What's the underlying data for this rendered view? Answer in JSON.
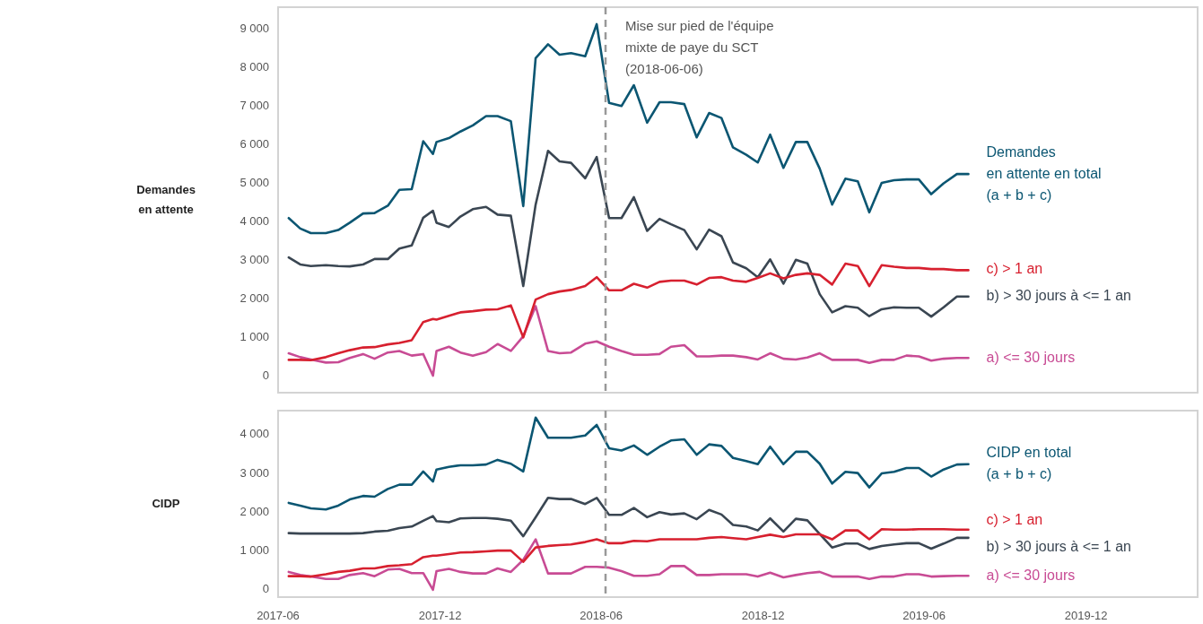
{
  "chart_data": [
    {
      "type": "line",
      "ylabel": "Demandes\nen attente",
      "tick_labels": "y",
      "x": [
        "2017-06-13",
        "2017-06-26",
        "2017-07-08",
        "2017-07-25",
        "2017-08-08",
        "2017-08-21",
        "2017-09-05",
        "2017-09-18",
        "2017-10-03",
        "2017-10-16",
        "2017-10-30",
        "2017-11-12",
        "2017-11-23",
        "2017-11-27",
        "2017-12-11",
        "2017-12-24",
        "2018-01-07",
        "2018-01-22",
        "2018-02-04",
        "2018-02-19",
        "2018-03-05",
        "2018-03-19",
        "2018-04-02",
        "2018-04-15",
        "2018-04-28",
        "2018-05-14",
        "2018-05-27",
        "2018-06-10",
        "2018-06-24",
        "2018-07-08",
        "2018-07-23",
        "2018-08-06",
        "2018-08-19",
        "2018-09-03",
        "2018-09-17",
        "2018-10-01",
        "2018-10-15",
        "2018-10-28",
        "2018-11-12",
        "2018-11-25",
        "2018-12-09",
        "2018-12-24",
        "2019-01-07",
        "2019-01-20",
        "2019-02-03",
        "2019-02-17",
        "2019-03-04",
        "2019-03-18",
        "2019-03-31",
        "2019-04-14",
        "2019-04-28",
        "2019-05-12",
        "2019-05-26",
        "2019-06-09",
        "2019-06-23",
        "2019-07-08",
        "2019-07-21"
      ],
      "series": [
        {
          "name": "Demandes\nen attente en total\n(a + b + c)",
          "color": "#0b5672",
          "values": [
            4100,
            3830,
            3710,
            3710,
            3790,
            3980,
            4220,
            4230,
            4420,
            4830,
            4850,
            6090,
            5760,
            6070,
            6170,
            6340,
            6500,
            6740,
            6740,
            6610,
            4410,
            8240,
            8600,
            8330,
            8370,
            8290,
            9120,
            7080,
            7000,
            7540,
            6570,
            7100,
            7100,
            7050,
            6190,
            6820,
            6690,
            5930,
            5740,
            5540,
            6260,
            5400,
            6070,
            6070,
            5380,
            4450,
            5120,
            5050,
            4250,
            5010,
            5080,
            5100,
            5100,
            4720,
            5000,
            5240,
            5240
          ]
        },
        {
          "name": "c) > 1 an",
          "color": "#d7202f",
          "values": [
            430,
            430,
            420,
            500,
            600,
            680,
            750,
            760,
            830,
            870,
            940,
            1410,
            1490,
            1470,
            1570,
            1660,
            1690,
            1730,
            1740,
            1840,
            1010,
            1990,
            2130,
            2200,
            2240,
            2340,
            2570,
            2230,
            2230,
            2400,
            2300,
            2450,
            2480,
            2480,
            2380,
            2550,
            2570,
            2480,
            2450,
            2550,
            2670,
            2540,
            2630,
            2670,
            2630,
            2380,
            2920,
            2860,
            2340,
            2880,
            2840,
            2810,
            2810,
            2780,
            2780,
            2750,
            2750
          ]
        },
        {
          "name": "b) > 30 jours à <= 1 an",
          "color": "#3a4652",
          "values": [
            3080,
            2900,
            2860,
            2880,
            2860,
            2850,
            2900,
            3040,
            3040,
            3310,
            3390,
            4110,
            4290,
            3980,
            3870,
            4140,
            4330,
            4390,
            4190,
            4160,
            2340,
            4450,
            5840,
            5570,
            5530,
            5130,
            5680,
            4100,
            4100,
            4640,
            3770,
            4080,
            3940,
            3790,
            3290,
            3800,
            3630,
            2950,
            2800,
            2570,
            3030,
            2400,
            3020,
            2920,
            2130,
            1660,
            1820,
            1780,
            1560,
            1740,
            1790,
            1780,
            1780,
            1550,
            1790,
            2070,
            2070
          ]
        },
        {
          "name": "a) <= 30 jours",
          "color": "#c84b94",
          "values": [
            600,
            500,
            440,
            360,
            370,
            480,
            580,
            460,
            620,
            660,
            540,
            580,
            20,
            660,
            770,
            620,
            540,
            630,
            840,
            660,
            1040,
            1820,
            660,
            600,
            620,
            850,
            910,
            770,
            660,
            560,
            560,
            580,
            770,
            810,
            520,
            520,
            540,
            540,
            500,
            440,
            600,
            460,
            440,
            490,
            600,
            430,
            430,
            430,
            350,
            430,
            430,
            540,
            520,
            410,
            460,
            480,
            480
          ]
        }
      ],
      "xlim": [
        "2017-06",
        "2020-04-05"
      ],
      "xticks": [
        "2017-06",
        "2017-12",
        "2018-06",
        "2018-12",
        "2019-06",
        "2019-12"
      ],
      "ylim": [
        -420,
        9560
      ],
      "yticks": [
        {
          "value": 0,
          "label": "0"
        },
        {
          "value": 1000,
          "label": "1 000"
        },
        {
          "value": 2000,
          "label": "2 000"
        },
        {
          "value": 3000,
          "label": "3 000"
        },
        {
          "value": 4000,
          "label": "4 000"
        },
        {
          "value": 5000,
          "label": "5 000"
        },
        {
          "value": 6000,
          "label": "6 000"
        },
        {
          "value": 7000,
          "label": "7 000"
        },
        {
          "value": 8000,
          "label": "8 000"
        },
        {
          "value": 9000,
          "label": "9 000"
        }
      ],
      "ref_lines": [
        {
          "axis": "x",
          "value": "2018-06-06",
          "label": "Mise sur pied de l'équipe\nmixte de paye du SCT\n(2018-06-06)",
          "color": "#999999",
          "line_style": "dashed"
        }
      ]
    },
    {
      "type": "line",
      "ylabel": "CIDP",
      "x": [
        "2017-06-13",
        "2017-06-26",
        "2017-07-08",
        "2017-07-25",
        "2017-08-08",
        "2017-08-21",
        "2017-09-05",
        "2017-09-18",
        "2017-10-03",
        "2017-10-16",
        "2017-10-30",
        "2017-11-12",
        "2017-11-23",
        "2017-11-27",
        "2017-12-11",
        "2017-12-24",
        "2018-01-07",
        "2018-01-22",
        "2018-02-04",
        "2018-02-19",
        "2018-03-05",
        "2018-03-19",
        "2018-04-02",
        "2018-04-15",
        "2018-04-28",
        "2018-05-14",
        "2018-05-27",
        "2018-06-10",
        "2018-06-24",
        "2018-07-08",
        "2018-07-23",
        "2018-08-06",
        "2018-08-19",
        "2018-09-03",
        "2018-09-17",
        "2018-10-01",
        "2018-10-15",
        "2018-10-28",
        "2018-11-12",
        "2018-11-25",
        "2018-12-09",
        "2018-12-24",
        "2019-01-07",
        "2019-01-20",
        "2019-02-03",
        "2019-02-17",
        "2019-03-04",
        "2019-03-18",
        "2019-03-31",
        "2019-04-14",
        "2019-04-28",
        "2019-05-12",
        "2019-05-26",
        "2019-06-09",
        "2019-06-23",
        "2019-07-08",
        "2019-07-21"
      ],
      "series": [
        {
          "name": "CIDP en total\n(a + b + c)",
          "color": "#0b5672",
          "values": [
            2240,
            2170,
            2100,
            2070,
            2170,
            2330,
            2420,
            2400,
            2600,
            2710,
            2710,
            3050,
            2790,
            3100,
            3170,
            3210,
            3210,
            3230,
            3350,
            3250,
            3050,
            4440,
            3920,
            3920,
            3920,
            3980,
            4250,
            3650,
            3590,
            3720,
            3480,
            3690,
            3850,
            3880,
            3480,
            3750,
            3710,
            3400,
            3320,
            3240,
            3690,
            3240,
            3560,
            3560,
            3250,
            2740,
            3040,
            3010,
            2640,
            3000,
            3040,
            3140,
            3140,
            2920,
            3100,
            3230,
            3240
          ]
        },
        {
          "name": "c) > 1 an",
          "color": "#d7202f",
          "values": [
            350,
            350,
            340,
            400,
            460,
            490,
            550,
            550,
            610,
            630,
            660,
            840,
            880,
            880,
            920,
            960,
            970,
            990,
            1010,
            1010,
            720,
            1090,
            1130,
            1150,
            1170,
            1230,
            1300,
            1200,
            1200,
            1260,
            1250,
            1300,
            1300,
            1300,
            1300,
            1340,
            1360,
            1330,
            1300,
            1360,
            1420,
            1360,
            1430,
            1430,
            1430,
            1300,
            1530,
            1530,
            1300,
            1560,
            1550,
            1550,
            1560,
            1560,
            1560,
            1550,
            1550
          ]
        },
        {
          "name": "b) > 30 jours à <= 1 an",
          "color": "#3a4652",
          "values": [
            1460,
            1450,
            1450,
            1450,
            1450,
            1450,
            1460,
            1500,
            1520,
            1590,
            1630,
            1780,
            1900,
            1770,
            1740,
            1840,
            1850,
            1850,
            1830,
            1780,
            1380,
            1870,
            2370,
            2340,
            2340,
            2210,
            2370,
            1930,
            1930,
            2110,
            1870,
            2000,
            1940,
            1970,
            1820,
            2060,
            1940,
            1670,
            1630,
            1530,
            1840,
            1500,
            1830,
            1790,
            1440,
            1090,
            1190,
            1190,
            1050,
            1130,
            1170,
            1200,
            1200,
            1060,
            1190,
            1340,
            1340
          ]
        },
        {
          "name": "a) <= 30 jours",
          "color": "#c84b94",
          "values": [
            460,
            380,
            340,
            280,
            280,
            380,
            430,
            350,
            520,
            540,
            430,
            430,
            0,
            480,
            540,
            460,
            420,
            420,
            550,
            460,
            770,
            1300,
            420,
            420,
            420,
            590,
            590,
            570,
            480,
            360,
            360,
            400,
            610,
            610,
            380,
            380,
            400,
            400,
            400,
            340,
            440,
            320,
            380,
            430,
            460,
            340,
            340,
            340,
            280,
            340,
            340,
            400,
            400,
            340,
            350,
            360,
            360
          ]
        }
      ],
      "xlim": [
        "2017-06",
        "2020-04-05"
      ],
      "xticks": [
        "2017-06",
        "2017-12",
        "2018-06",
        "2018-12",
        "2019-06",
        "2019-12"
      ],
      "ylim": [
        -190,
        4620
      ],
      "yticks": [
        {
          "value": 0,
          "label": "0"
        },
        {
          "value": 1000,
          "label": "1 000"
        },
        {
          "value": 2000,
          "label": "2 000"
        },
        {
          "value": 3000,
          "label": "3 000"
        },
        {
          "value": 4000,
          "label": "4 000"
        }
      ],
      "ref_lines": [
        {
          "axis": "x",
          "value": "2018-06-06",
          "color": "#999999",
          "line_style": "dashed"
        }
      ]
    }
  ]
}
